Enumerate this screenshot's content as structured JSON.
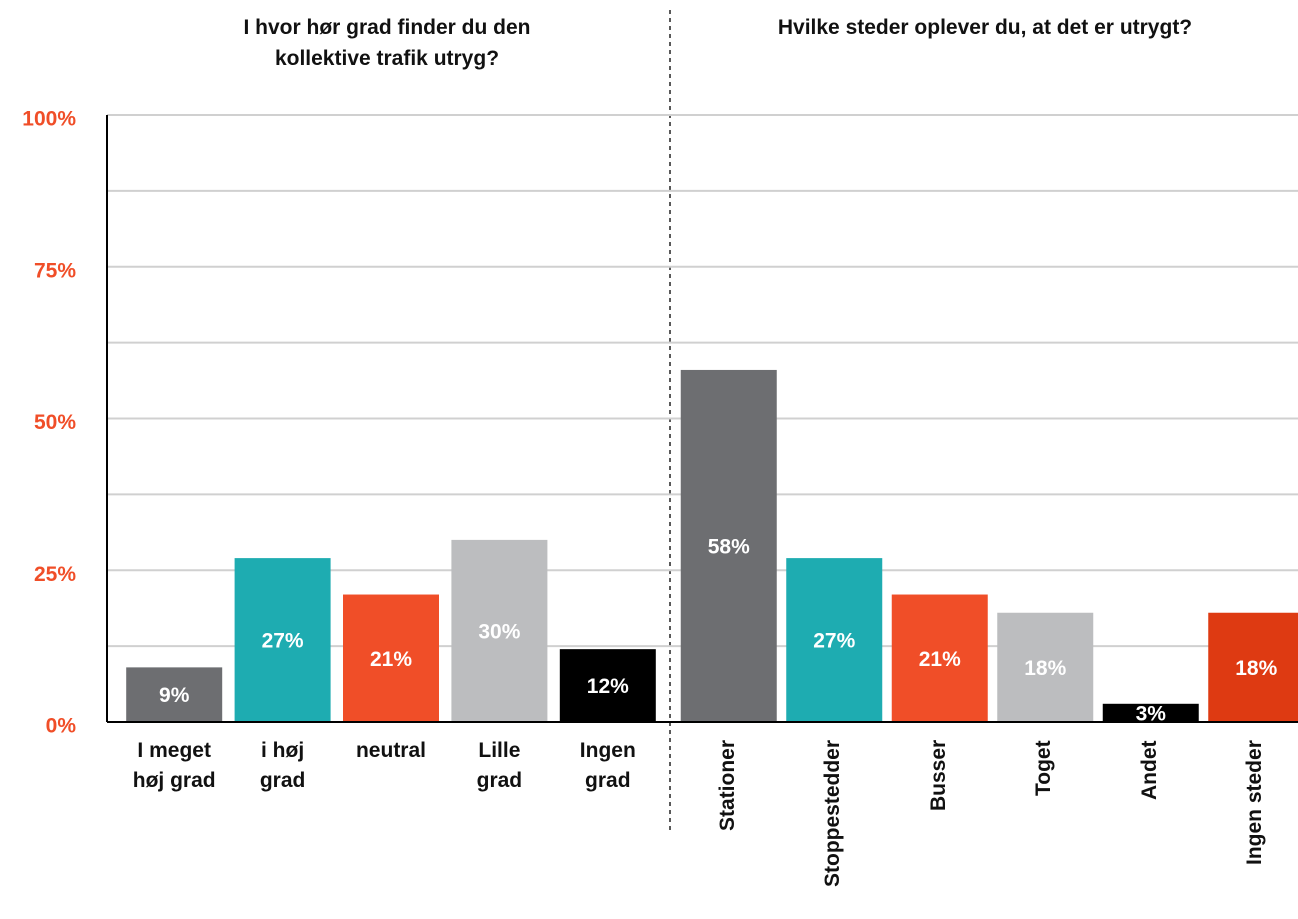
{
  "chart_data": [
    {
      "type": "bar",
      "title": "I hvor hør grad finder du den\nkollektive trafik utryg?",
      "categories": [
        "I meget\nhøj grad",
        "i høj\ngrad",
        "neutral",
        "Lille\ngrad",
        "Ingen\ngrad"
      ],
      "values": [
        9,
        27,
        21,
        30,
        12
      ],
      "value_labels": [
        "9%",
        "27%",
        "21%",
        "30%",
        "12%"
      ],
      "colors": [
        "#6d6e71",
        "#1eacb1",
        "#f04e28",
        "#bcbdbf",
        "#000000"
      ],
      "ylim": [
        0,
        100
      ],
      "yticks": [
        {
          "value": 0,
          "label": "0%"
        },
        {
          "value": 25,
          "label": "25%"
        },
        {
          "value": 50,
          "label": "50%"
        },
        {
          "value": 75,
          "label": "75%"
        },
        {
          "value": 100,
          "label": "100%"
        }
      ],
      "minor_yticks": [
        12.5,
        37.5,
        62.5,
        87.5
      ],
      "grid": true
    },
    {
      "type": "bar",
      "title": "Hvilke steder oplever du, at det er utrygt?",
      "categories": [
        "Stationer",
        "Stoppestedder",
        "Busser",
        "Toget",
        "Andet",
        "Ingen steder"
      ],
      "values": [
        58,
        27,
        21,
        18,
        3,
        18
      ],
      "value_labels": [
        "58%",
        "27%",
        "21%",
        "18%",
        "3%",
        "18%"
      ],
      "colors": [
        "#6d6e71",
        "#1eacb1",
        "#f04e28",
        "#bcbdbf",
        "#000000",
        "#de3a12"
      ],
      "ylim": [
        0,
        100
      ],
      "label_rotation": -90
    }
  ]
}
